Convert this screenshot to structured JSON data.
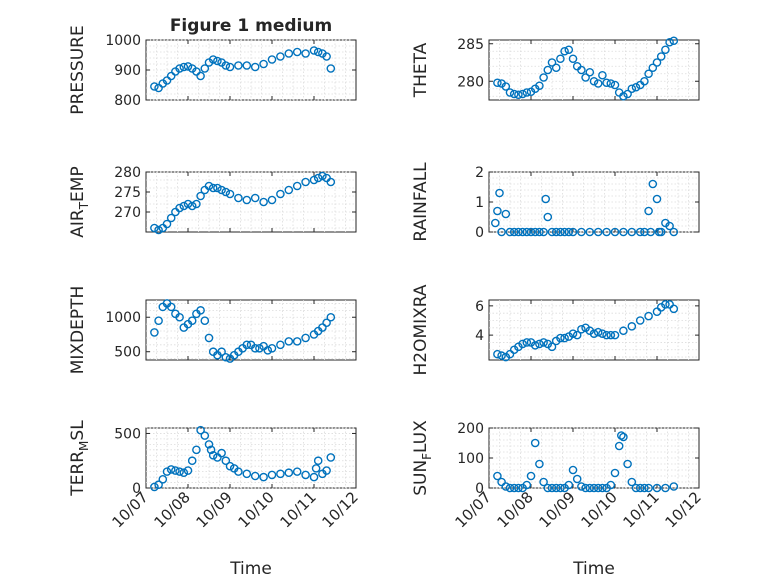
{
  "chart_data": [
    {
      "type": "scatter",
      "title": "Figure 1 medium",
      "ylabel": "PRESSURE",
      "ylim": [
        800,
        1000
      ],
      "yticks": [
        800,
        900,
        1000
      ],
      "x": [
        7.2,
        7.3,
        7.4,
        7.5,
        7.6,
        7.7,
        7.8,
        7.9,
        8.0,
        8.1,
        8.2,
        8.3,
        8.4,
        8.5,
        8.6,
        8.7,
        8.8,
        8.9,
        9.0,
        9.2,
        9.4,
        9.6,
        9.8,
        10.0,
        10.2,
        10.4,
        10.6,
        10.8,
        11.0,
        11.1,
        11.2,
        11.3,
        11.4
      ],
      "y": [
        845,
        840,
        855,
        865,
        880,
        895,
        905,
        910,
        912,
        905,
        895,
        880,
        905,
        925,
        935,
        930,
        925,
        915,
        910,
        915,
        915,
        910,
        920,
        935,
        945,
        955,
        960,
        955,
        965,
        960,
        955,
        945,
        905
      ]
    },
    {
      "type": "scatter",
      "ylabel": "THETA",
      "ylim": [
        277.5,
        285.5
      ],
      "yticks": [
        280,
        285
      ],
      "x": [
        7.2,
        7.3,
        7.4,
        7.5,
        7.6,
        7.7,
        7.8,
        7.9,
        8.0,
        8.1,
        8.2,
        8.3,
        8.4,
        8.5,
        8.6,
        8.7,
        8.8,
        8.9,
        9.0,
        9.1,
        9.2,
        9.3,
        9.4,
        9.5,
        9.6,
        9.7,
        9.8,
        9.9,
        10.0,
        10.1,
        10.2,
        10.3,
        10.4,
        10.5,
        10.6,
        10.7,
        10.8,
        10.9,
        11.0,
        11.1,
        11.2,
        11.3,
        11.4
      ],
      "y": [
        279.8,
        279.7,
        279.3,
        278.5,
        278.3,
        278.2,
        278.3,
        278.5,
        278.6,
        279.0,
        279.4,
        280.5,
        281.5,
        282.5,
        281.8,
        283.0,
        284.0,
        284.2,
        283.0,
        282.0,
        281.5,
        280.5,
        281.2,
        280.0,
        279.7,
        280.8,
        279.8,
        279.7,
        279.5,
        278.5,
        278.0,
        278.3,
        279.0,
        279.2,
        279.5,
        280.0,
        281.0,
        281.8,
        282.5,
        283.3,
        284.2,
        285.2,
        285.4
      ]
    },
    {
      "type": "scatter",
      "ylabel": "AIR_TEMP",
      "ylim": [
        265,
        280
      ],
      "yticks": [
        270,
        275,
        280
      ],
      "x": [
        7.2,
        7.3,
        7.4,
        7.5,
        7.6,
        7.7,
        7.8,
        7.9,
        8.0,
        8.1,
        8.2,
        8.3,
        8.4,
        8.5,
        8.6,
        8.7,
        8.8,
        8.9,
        9.0,
        9.2,
        9.4,
        9.6,
        9.8,
        10.0,
        10.2,
        10.4,
        10.6,
        10.8,
        11.0,
        11.1,
        11.2,
        11.3,
        11.4
      ],
      "y": [
        266.0,
        265.5,
        266.0,
        267.0,
        268.5,
        270.0,
        271.0,
        271.5,
        272.0,
        271.5,
        272.0,
        274.0,
        275.5,
        276.5,
        276.0,
        276.0,
        275.5,
        275.0,
        274.5,
        273.5,
        273.0,
        273.5,
        272.5,
        273.0,
        274.5,
        275.5,
        276.5,
        277.5,
        278.0,
        278.5,
        279.0,
        278.5,
        277.5
      ]
    },
    {
      "type": "scatter",
      "ylabel": "RAINFALL",
      "ylim": [
        0,
        2
      ],
      "yticks": [
        0,
        1,
        2
      ],
      "x": [
        7.15,
        7.2,
        7.25,
        7.3,
        7.4,
        7.5,
        7.6,
        7.7,
        7.8,
        7.9,
        8.0,
        8.1,
        8.2,
        8.3,
        8.35,
        8.4,
        8.5,
        8.6,
        8.7,
        8.8,
        8.9,
        9.0,
        9.2,
        9.4,
        9.6,
        9.8,
        10.0,
        10.2,
        10.4,
        10.6,
        10.7,
        10.8,
        10.85,
        10.9,
        11.0,
        11.05,
        11.1,
        11.2,
        11.3,
        11.4
      ],
      "y": [
        0.3,
        0.7,
        1.3,
        0.0,
        0.6,
        0.0,
        0.0,
        0.0,
        0.0,
        0.0,
        0.0,
        0.0,
        0.0,
        0.0,
        1.1,
        0.5,
        0.0,
        0.0,
        0.0,
        0.0,
        0.0,
        0.0,
        0.0,
        0.0,
        0.0,
        0.0,
        0.0,
        0.0,
        0.0,
        0.0,
        0.0,
        0.7,
        0.0,
        1.6,
        1.1,
        0.0,
        0.0,
        0.3,
        0.2,
        0.0
      ]
    },
    {
      "type": "scatter",
      "ylabel": "MIXDEPTH",
      "ylim": [
        380,
        1250
      ],
      "yticks": [
        500,
        1000
      ],
      "x": [
        7.2,
        7.3,
        7.4,
        7.5,
        7.6,
        7.7,
        7.8,
        7.9,
        8.0,
        8.1,
        8.2,
        8.3,
        8.4,
        8.5,
        8.6,
        8.7,
        8.8,
        8.9,
        9.0,
        9.1,
        9.2,
        9.3,
        9.4,
        9.5,
        9.6,
        9.7,
        9.8,
        9.9,
        10.0,
        10.2,
        10.4,
        10.6,
        10.8,
        11.0,
        11.1,
        11.2,
        11.3,
        11.4
      ],
      "y": [
        780,
        950,
        1150,
        1200,
        1150,
        1050,
        1000,
        850,
        900,
        950,
        1050,
        1100,
        950,
        700,
        500,
        450,
        500,
        420,
        400,
        450,
        500,
        550,
        600,
        600,
        550,
        550,
        580,
        520,
        550,
        600,
        650,
        650,
        700,
        750,
        800,
        850,
        920,
        1000
      ]
    },
    {
      "type": "scatter",
      "ylabel": "H2OMIXRA",
      "ylim": [
        2.3,
        6.4
      ],
      "yticks": [
        4,
        6
      ],
      "x": [
        7.2,
        7.3,
        7.4,
        7.5,
        7.6,
        7.7,
        7.8,
        7.9,
        8.0,
        8.1,
        8.2,
        8.3,
        8.4,
        8.5,
        8.6,
        8.7,
        8.8,
        8.9,
        9.0,
        9.1,
        9.2,
        9.3,
        9.4,
        9.5,
        9.6,
        9.7,
        9.8,
        9.9,
        10.0,
        10.2,
        10.4,
        10.6,
        10.8,
        11.0,
        11.1,
        11.2,
        11.3,
        11.4
      ],
      "y": [
        2.7,
        2.6,
        2.5,
        2.7,
        3.0,
        3.2,
        3.4,
        3.5,
        3.5,
        3.3,
        3.4,
        3.5,
        3.4,
        3.2,
        3.6,
        3.8,
        3.8,
        3.9,
        4.1,
        4.0,
        4.4,
        4.5,
        4.3,
        4.1,
        4.2,
        4.1,
        4.0,
        4.0,
        4.0,
        4.3,
        4.6,
        5.0,
        5.3,
        5.6,
        5.9,
        6.1,
        6.1,
        5.8
      ]
    },
    {
      "type": "scatter",
      "ylabel": "TERR_MSL",
      "ylim": [
        0,
        550
      ],
      "yticks": [
        0,
        500
      ],
      "x": [
        7.2,
        7.3,
        7.4,
        7.5,
        7.6,
        7.7,
        7.8,
        7.9,
        8.0,
        8.1,
        8.2,
        8.3,
        8.4,
        8.5,
        8.55,
        8.6,
        8.7,
        8.8,
        8.9,
        9.0,
        9.1,
        9.2,
        9.4,
        9.6,
        9.8,
        10.0,
        10.2,
        10.4,
        10.6,
        10.8,
        11.0,
        11.05,
        11.1,
        11.2,
        11.3,
        11.4
      ],
      "y": [
        10,
        30,
        80,
        150,
        170,
        160,
        150,
        140,
        160,
        250,
        350,
        530,
        480,
        400,
        350,
        300,
        280,
        320,
        250,
        200,
        180,
        150,
        130,
        110,
        100,
        120,
        130,
        140,
        150,
        120,
        100,
        180,
        250,
        130,
        160,
        280
      ]
    },
    {
      "type": "scatter",
      "ylabel": "SUN_FLUX",
      "ylim": [
        0,
        200
      ],
      "yticks": [
        0,
        100,
        200
      ],
      "x": [
        7.2,
        7.3,
        7.4,
        7.5,
        7.6,
        7.7,
        7.8,
        7.9,
        8.0,
        8.1,
        8.2,
        8.3,
        8.4,
        8.5,
        8.6,
        8.7,
        8.8,
        8.9,
        9.0,
        9.1,
        9.2,
        9.3,
        9.4,
        9.5,
        9.6,
        9.7,
        9.8,
        9.9,
        10.0,
        10.1,
        10.15,
        10.2,
        10.3,
        10.4,
        10.5,
        10.6,
        10.7,
        10.8,
        11.0,
        11.2,
        11.4
      ],
      "y": [
        40,
        20,
        5,
        0,
        0,
        0,
        0,
        10,
        40,
        150,
        80,
        20,
        0,
        0,
        0,
        0,
        0,
        10,
        60,
        30,
        5,
        0,
        0,
        0,
        0,
        0,
        0,
        10,
        50,
        140,
        175,
        170,
        80,
        20,
        0,
        0,
        0,
        0,
        0,
        0,
        5
      ]
    }
  ],
  "shared_x": {
    "ticks": [
      7,
      8,
      9,
      10,
      11,
      12
    ],
    "tick_labels": [
      "10/07",
      "10/08",
      "10/09",
      "10/10",
      "10/11",
      "10/12"
    ],
    "xlabel": "Time"
  },
  "axis_labels": [
    {
      "main": "PRESSURE",
      "sub": "",
      "rest": ""
    },
    {
      "main": "THETA",
      "sub": "",
      "rest": ""
    },
    {
      "main": "AIR",
      "sub": "T",
      "rest": "EMP"
    },
    {
      "main": "RAINFALL",
      "sub": "",
      "rest": ""
    },
    {
      "main": "MIXDEPTH",
      "sub": "",
      "rest": ""
    },
    {
      "main": "H2OMIXRA",
      "sub": "",
      "rest": ""
    },
    {
      "main": "TERR",
      "sub": "M",
      "rest": "SL"
    },
    {
      "main": "SUN",
      "sub": "F",
      "rest": "LUX"
    }
  ],
  "colors": {
    "marker": "#0072BD",
    "axes": "#262626",
    "grid": "#dcdcdc"
  }
}
